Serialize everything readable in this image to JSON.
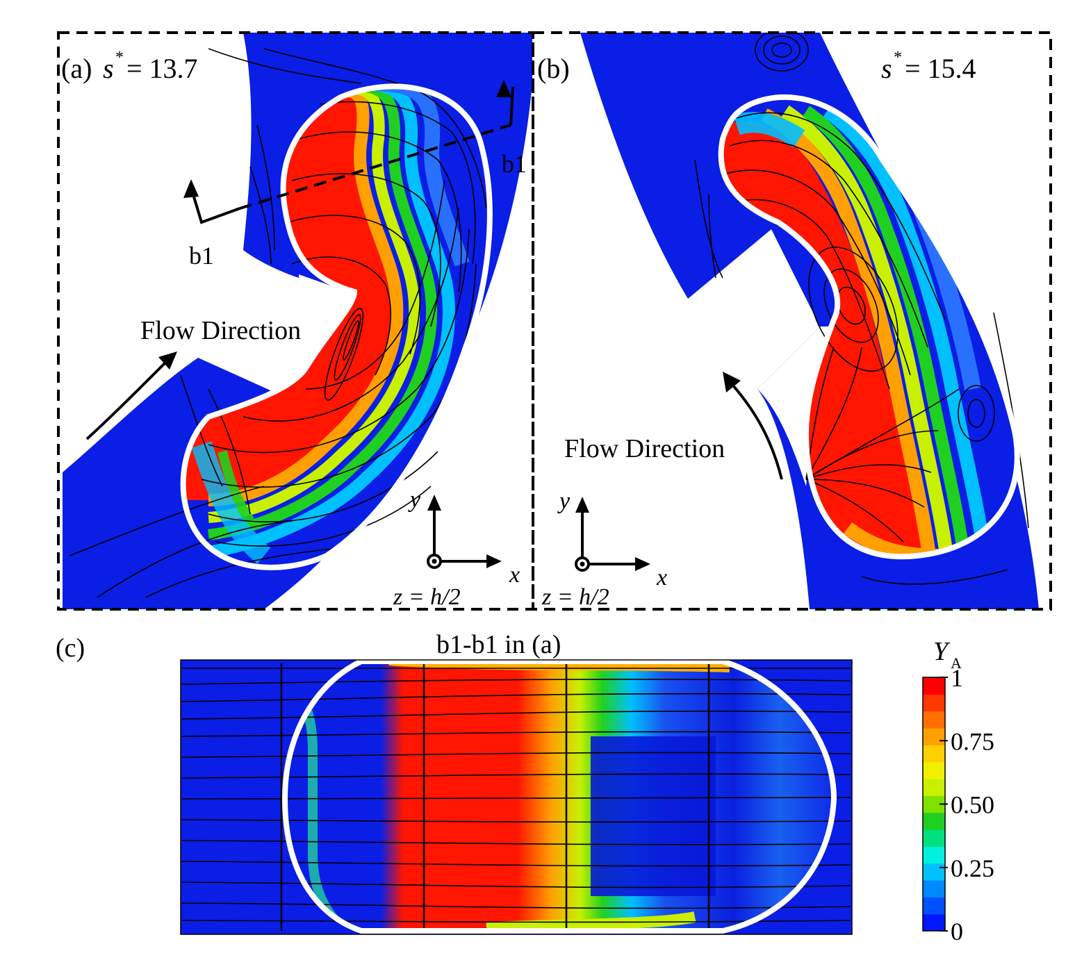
{
  "panel_a": {
    "label": "(a)",
    "s_symbol": "s",
    "s_sup": "*",
    "s_value": "= 13.7",
    "section_label_right": "b1",
    "section_label_left": "b1",
    "flow_label": "Flow Direction",
    "axis_x": "x",
    "axis_y": "y",
    "plane_label": "z = h/2"
  },
  "panel_b": {
    "label": "(b)",
    "s_symbol": "s",
    "s_sup": "*",
    "s_value": "= 15.4",
    "flow_label": "Flow Direction",
    "axis_x": "x",
    "axis_y": "y",
    "plane_label": "z = h/2"
  },
  "panel_c": {
    "label": "(c)",
    "title": "b1-b1 in (a)"
  },
  "colorbar": {
    "variable": "Y",
    "subscript": "A",
    "ticks": [
      "1",
      "0.75",
      "0.50",
      "0.25",
      "0"
    ],
    "colors": [
      "#0018ff",
      "#0050ff",
      "#0088ff",
      "#00c0ff",
      "#00f0e0",
      "#00e080",
      "#20d020",
      "#80e000",
      "#c8f000",
      "#f0f000",
      "#ffd000",
      "#ffa000",
      "#ff7000",
      "#ff3800",
      "#ff0000"
    ]
  },
  "colors": {
    "low": "#0a1ee6",
    "high": "#ff1500",
    "outline": "#ffffff",
    "frame": "#000000"
  }
}
